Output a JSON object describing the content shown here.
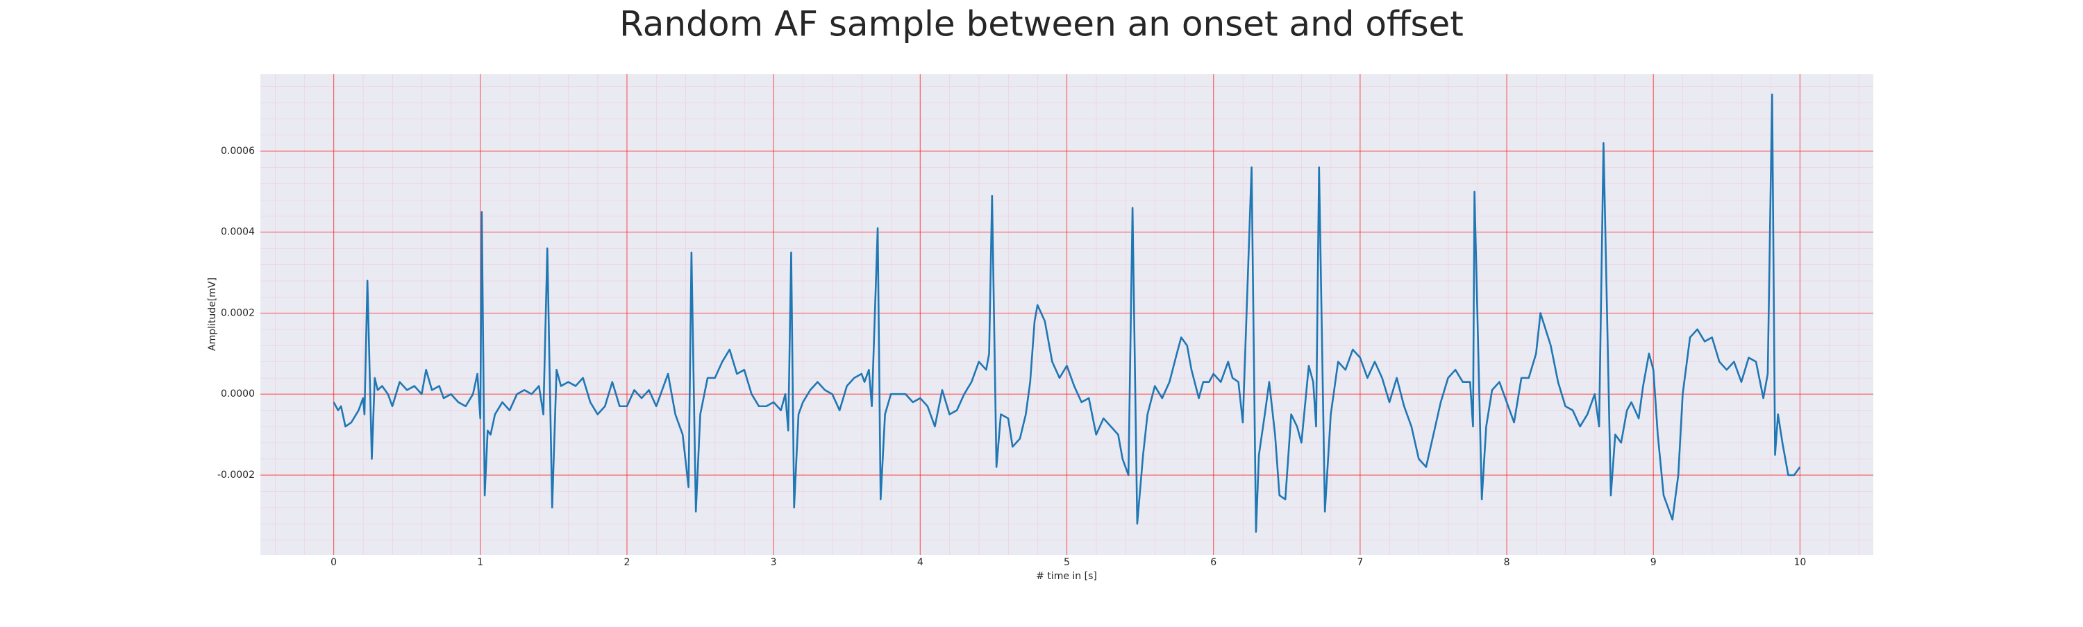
{
  "chart_data": {
    "type": "line",
    "title": "Random AF sample between an onset and offset",
    "xlabel": "# time in [s]",
    "ylabel": "Amplitude[mV]",
    "color": "#1f77b4",
    "grid": true,
    "minor_grid": true,
    "xlim": [
      -0.5,
      10.5
    ],
    "ylim": [
      -0.000397,
      0.00079
    ],
    "xticks": [
      0,
      1,
      2,
      3,
      4,
      5,
      6,
      7,
      8,
      9,
      10
    ],
    "yticks": [
      -0.0002,
      {
        "value": 0,
        "label": "0.0000"
      },
      0.0002,
      0.0004,
      0.0006
    ],
    "x": [
      0,
      0.03,
      0.05,
      0.08,
      0.12,
      0.17,
      0.2,
      0.21,
      0.23,
      0.26,
      0.28,
      0.3,
      0.33,
      0.37,
      0.4,
      0.45,
      0.5,
      0.55,
      0.6,
      0.63,
      0.67,
      0.72,
      0.75,
      0.8,
      0.85,
      0.9,
      0.95,
      0.98,
      1.0,
      1.01,
      1.03,
      1.05,
      1.07,
      1.1,
      1.15,
      1.2,
      1.25,
      1.3,
      1.35,
      1.4,
      1.43,
      1.457,
      1.49,
      1.52,
      1.55,
      1.6,
      1.65,
      1.7,
      1.75,
      1.8,
      1.85,
      1.9,
      1.95,
      2.0,
      2.05,
      2.1,
      2.15,
      2.2,
      2.28,
      2.33,
      2.38,
      2.42,
      2.44,
      2.47,
      2.5,
      2.55,
      2.6,
      2.65,
      2.7,
      2.75,
      2.8,
      2.85,
      2.9,
      2.95,
      3.0,
      3.05,
      3.08,
      3.1,
      3.12,
      3.14,
      3.17,
      3.2,
      3.25,
      3.3,
      3.35,
      3.4,
      3.45,
      3.5,
      3.55,
      3.6,
      3.62,
      3.65,
      3.67,
      3.71,
      3.73,
      3.76,
      3.8,
      3.85,
      3.9,
      3.95,
      4.0,
      4.05,
      4.1,
      4.15,
      4.2,
      4.25,
      4.3,
      4.35,
      4.4,
      4.45,
      4.47,
      4.49,
      4.52,
      4.55,
      4.6,
      4.63,
      4.68,
      4.72,
      4.75,
      4.78,
      4.8,
      4.85,
      4.9,
      4.95,
      5.0,
      5.05,
      5.1,
      5.15,
      5.2,
      5.25,
      5.3,
      5.35,
      5.38,
      5.42,
      5.448,
      5.48,
      5.52,
      5.55,
      5.6,
      5.65,
      5.7,
      5.75,
      5.78,
      5.82,
      5.85,
      5.9,
      5.93,
      5.97,
      6.0,
      6.05,
      6.1,
      6.13,
      6.17,
      6.2,
      6.26,
      6.29,
      6.31,
      6.35,
      6.38,
      6.42,
      6.45,
      6.49,
      6.53,
      6.57,
      6.6,
      6.65,
      6.68,
      6.7,
      6.72,
      6.76,
      6.8,
      6.85,
      6.9,
      6.95,
      7.0,
      7.05,
      7.1,
      7.15,
      7.2,
      7.25,
      7.3,
      7.35,
      7.4,
      7.45,
      7.5,
      7.55,
      7.6,
      7.65,
      7.7,
      7.75,
      7.77,
      7.78,
      7.83,
      7.86,
      7.9,
      7.95,
      8.0,
      8.05,
      8.1,
      8.15,
      8.2,
      8.23,
      8.3,
      8.35,
      8.4,
      8.45,
      8.5,
      8.55,
      8.6,
      8.63,
      8.66,
      8.71,
      8.74,
      8.78,
      8.82,
      8.85,
      8.9,
      8.93,
      8.97,
      9.0,
      9.03,
      9.07,
      9.1,
      9.13,
      9.17,
      9.2,
      9.25,
      9.3,
      9.35,
      9.4,
      9.45,
      9.5,
      9.55,
      9.6,
      9.65,
      9.7,
      9.75,
      9.78,
      9.81,
      9.83,
      9.85,
      9.88,
      9.92,
      9.96,
      10.0
    ],
    "values": [
      -2e-05,
      -4e-05,
      -3e-05,
      -8e-05,
      -7e-05,
      -4e-05,
      -1e-05,
      -5e-05,
      0.00028,
      -0.00016,
      4e-05,
      1e-05,
      2e-05,
      0.0,
      -3e-05,
      3e-05,
      1e-05,
      2e-05,
      0.0,
      6e-05,
      1e-05,
      2e-05,
      -1e-05,
      0.0,
      -2e-05,
      -3e-05,
      0.0,
      5e-05,
      -6e-05,
      0.00045,
      -0.00025,
      -9e-05,
      -0.0001,
      -5e-05,
      -2e-05,
      -4e-05,
      0.0,
      1e-05,
      0.0,
      2e-05,
      -5e-05,
      0.00036,
      -0.00028,
      6e-05,
      2e-05,
      3e-05,
      2e-05,
      4e-05,
      -2e-05,
      -5e-05,
      -3e-05,
      3e-05,
      -3e-05,
      -3e-05,
      1e-05,
      -1e-05,
      1e-05,
      -3e-05,
      5e-05,
      -5e-05,
      -0.0001,
      -0.00023,
      0.00035,
      -0.00029,
      -5e-05,
      4e-05,
      4e-05,
      8e-05,
      0.00011,
      5e-05,
      6e-05,
      0.0,
      -3e-05,
      -3e-05,
      -2e-05,
      -4e-05,
      0.0,
      -9e-05,
      0.00035,
      -0.00028,
      -5e-05,
      -2e-05,
      1e-05,
      3e-05,
      1e-05,
      0.0,
      -4e-05,
      2e-05,
      4e-05,
      5e-05,
      3e-05,
      6e-05,
      -3e-05,
      0.00041,
      -0.00026,
      -5e-05,
      0.0,
      0.0,
      0.0,
      -2e-05,
      -1e-05,
      -3e-05,
      -8e-05,
      1e-05,
      -5e-05,
      -4e-05,
      0.0,
      3e-05,
      8e-05,
      6e-05,
      0.0001,
      0.00049,
      -0.00018,
      -5e-05,
      -6e-05,
      -0.00013,
      -0.00011,
      -5e-05,
      3e-05,
      0.00018,
      0.00022,
      0.00018,
      8e-05,
      4e-05,
      7e-05,
      2e-05,
      -2e-05,
      -1e-05,
      -0.0001,
      -6e-05,
      -8e-05,
      -0.0001,
      -0.00016,
      -0.0002,
      0.00046,
      -0.00032,
      -0.00015,
      -5e-05,
      2e-05,
      -1e-05,
      3e-05,
      0.0001,
      0.00014,
      0.00012,
      6e-05,
      -1e-05,
      3e-05,
      3e-05,
      5e-05,
      3e-05,
      8e-05,
      4e-05,
      3e-05,
      -7e-05,
      0.00056,
      -0.00034,
      -0.00015,
      -5e-05,
      3e-05,
      -0.0001,
      -0.00025,
      -0.00026,
      -5e-05,
      -8e-05,
      -0.00012,
      7e-05,
      3e-05,
      -8e-05,
      0.00056,
      -0.00029,
      -5e-05,
      8e-05,
      6e-05,
      0.00011,
      9e-05,
      4e-05,
      8e-05,
      4e-05,
      -2e-05,
      4e-05,
      -3e-05,
      -8e-05,
      -0.00016,
      -0.00018,
      -0.0001,
      -2e-05,
      4e-05,
      6e-05,
      3e-05,
      3e-05,
      -8e-05,
      0.0005,
      -0.00026,
      -8e-05,
      1e-05,
      3e-05,
      -2e-05,
      -7e-05,
      4e-05,
      4e-05,
      0.0001,
      0.0002,
      0.00012,
      3e-05,
      -3e-05,
      -4e-05,
      -8e-05,
      -5e-05,
      0.0,
      -8e-05,
      0.00062,
      -0.00025,
      -0.0001,
      -0.00012,
      -4e-05,
      -2e-05,
      -6e-05,
      2e-05,
      0.0001,
      6e-05,
      -0.0001,
      -0.00025,
      -0.00028,
      -0.00031,
      -0.0002,
      0.0,
      0.00014,
      0.00016,
      0.00013,
      0.00014,
      8e-05,
      6e-05,
      8e-05,
      3e-05,
      9e-05,
      8e-05,
      -1e-05,
      5e-05,
      0.00074,
      -0.00015,
      -5e-05,
      -0.00012,
      -0.0002,
      -0.0002,
      -0.00018
    ]
  }
}
